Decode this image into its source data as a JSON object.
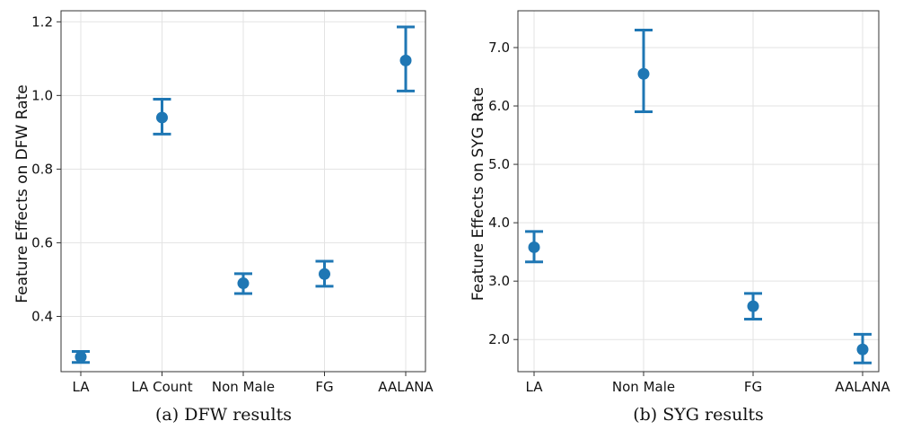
{
  "chart_data": [
    {
      "type": "scatter",
      "caption": "(a) DFW results",
      "ylabel": "Feature Effects on DFW Rate",
      "categories": [
        "LA",
        "LA Count",
        "Non Male",
        "FG",
        "AALANA"
      ],
      "values": [
        0.29,
        0.94,
        0.49,
        0.515,
        1.095
      ],
      "lower": [
        0.275,
        0.895,
        0.462,
        0.482,
        1.012
      ],
      "upper": [
        0.305,
        0.99,
        0.516,
        0.55,
        1.186
      ],
      "ylim": [
        0.25,
        1.23
      ],
      "yticks": [
        0.4,
        0.6,
        0.8,
        1.0,
        1.2
      ],
      "ytick_labels": [
        "0.4",
        "0.6",
        "0.8",
        "1.0",
        "1.2"
      ],
      "grid": true,
      "color": "#1f77b4"
    },
    {
      "type": "scatter",
      "caption": "(b) SYG results",
      "ylabel": "Feature Effects on SYG Rate",
      "categories": [
        "LA",
        "Non Male",
        "FG",
        "AALANA"
      ],
      "values": [
        3.58,
        6.55,
        2.57,
        1.83
      ],
      "lower": [
        3.33,
        5.9,
        2.35,
        1.6
      ],
      "upper": [
        3.85,
        7.3,
        2.79,
        2.09
      ],
      "ylim": [
        1.45,
        7.63
      ],
      "yticks": [
        2.0,
        3.0,
        4.0,
        5.0,
        6.0,
        7.0
      ],
      "ytick_labels": [
        "2.0",
        "3.0",
        "4.0",
        "5.0",
        "6.0",
        "7.0"
      ],
      "grid": true,
      "color": "#1f77b4"
    }
  ]
}
